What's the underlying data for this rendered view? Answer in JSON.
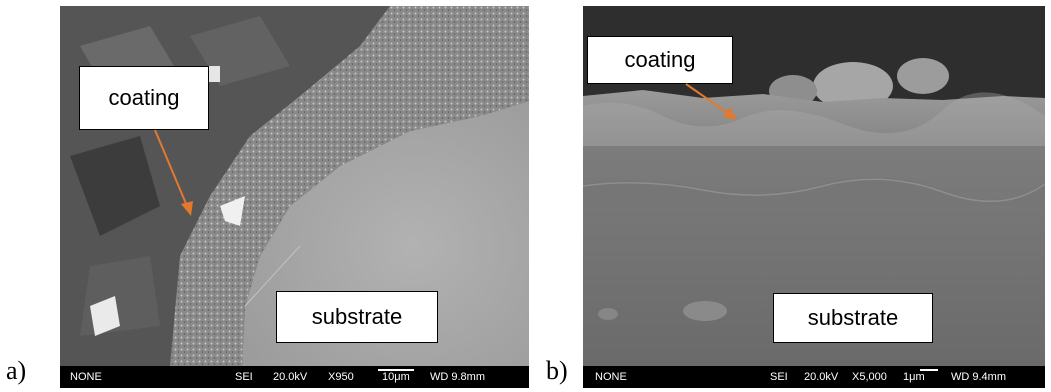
{
  "panels": [
    {
      "letter": "a)",
      "coating_label": "coating",
      "substrate_label": "substrate",
      "footer": {
        "signal_label": "NONE",
        "detector": "SEI",
        "voltage": "20.0kV",
        "magnification": "X950",
        "scale_bar": "10μm",
        "working_distance": "WD 9.8mm"
      }
    },
    {
      "letter": "b)",
      "coating_label": "coating",
      "substrate_label": "substrate",
      "footer": {
        "signal_label": "NONE",
        "detector": "SEI",
        "voltage": "20.0kV",
        "magnification": "X5,000",
        "scale_bar": "1μm",
        "working_distance": "WD 9.4mm"
      }
    }
  ],
  "colors": {
    "arrow": "#e2792f",
    "background": "#ffffff",
    "info_bar": "#000000"
  }
}
